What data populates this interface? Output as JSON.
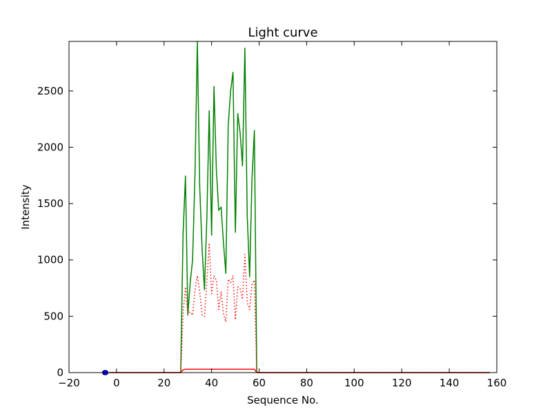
{
  "chart_data": {
    "type": "line",
    "title": "Light curve",
    "xlabel": "Sequence No.",
    "ylabel": "Intensity",
    "xlim": [
      -20,
      160
    ],
    "ylim": [
      0,
      2940
    ],
    "xticks": [
      -20,
      0,
      20,
      40,
      60,
      80,
      100,
      120,
      140,
      160
    ],
    "yticks": [
      0,
      500,
      1000,
      1500,
      2000,
      2500
    ],
    "grid": false,
    "series": [
      {
        "color": "#008000",
        "style": "solid",
        "points": [
          [
            -3,
            0
          ],
          [
            27,
            0
          ],
          [
            28,
            1230
          ],
          [
            29,
            1745
          ],
          [
            30,
            510
          ],
          [
            31,
            800
          ],
          [
            32,
            1000
          ],
          [
            33,
            1750
          ],
          [
            34,
            2940
          ],
          [
            35,
            1650
          ],
          [
            36,
            1100
          ],
          [
            37,
            735
          ],
          [
            38,
            1370
          ],
          [
            39,
            2325
          ],
          [
            40,
            1220
          ],
          [
            41,
            2540
          ],
          [
            42,
            1800
          ],
          [
            43,
            1440
          ],
          [
            44,
            1470
          ],
          [
            45,
            1150
          ],
          [
            46,
            880
          ],
          [
            47,
            2200
          ],
          [
            48,
            2500
          ],
          [
            49,
            2665
          ],
          [
            50,
            1245
          ],
          [
            51,
            2300
          ],
          [
            52,
            2130
          ],
          [
            53,
            1835
          ],
          [
            54,
            2880
          ],
          [
            55,
            1390
          ],
          [
            56,
            850
          ],
          [
            57,
            1720
          ],
          [
            58,
            2150
          ],
          [
            59,
            0
          ],
          [
            157,
            0
          ]
        ]
      },
      {
        "color": "#ff0000",
        "style": "dotted",
        "points": [
          [
            -3,
            0
          ],
          [
            27,
            0
          ],
          [
            28,
            520
          ],
          [
            29,
            760
          ],
          [
            30,
            520
          ],
          [
            31,
            540
          ],
          [
            32,
            510
          ],
          [
            33,
            730
          ],
          [
            34,
            860
          ],
          [
            35,
            720
          ],
          [
            36,
            510
          ],
          [
            37,
            500
          ],
          [
            38,
            810
          ],
          [
            39,
            1150
          ],
          [
            40,
            700
          ],
          [
            41,
            860
          ],
          [
            42,
            820
          ],
          [
            43,
            560
          ],
          [
            44,
            720
          ],
          [
            45,
            520
          ],
          [
            46,
            450
          ],
          [
            47,
            830
          ],
          [
            48,
            800
          ],
          [
            49,
            860
          ],
          [
            50,
            470
          ],
          [
            51,
            760
          ],
          [
            52,
            750
          ],
          [
            53,
            650
          ],
          [
            54,
            1050
          ],
          [
            55,
            620
          ],
          [
            56,
            560
          ],
          [
            57,
            780
          ],
          [
            58,
            820
          ],
          [
            59,
            0
          ],
          [
            157,
            0
          ]
        ]
      },
      {
        "color": "#ff0000",
        "style": "solid",
        "points": [
          [
            -3,
            0
          ],
          [
            27,
            0
          ],
          [
            28,
            25
          ],
          [
            29,
            30
          ],
          [
            58,
            30
          ],
          [
            59,
            0
          ],
          [
            157,
            0
          ]
        ]
      },
      {
        "color": "#0000ff",
        "style": "marker",
        "points": [
          [
            -5,
            0
          ],
          [
            -4.5,
            0
          ]
        ]
      }
    ]
  }
}
